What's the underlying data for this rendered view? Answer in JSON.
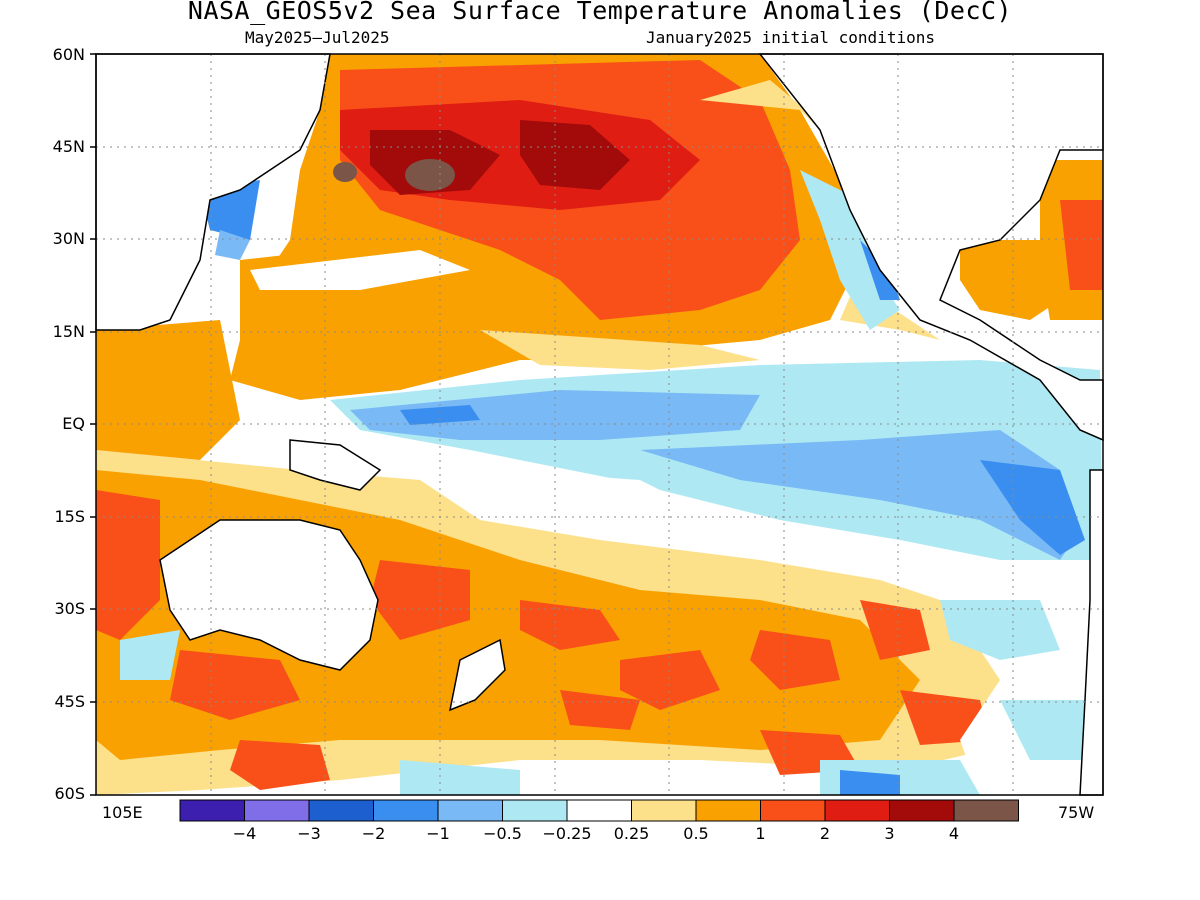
{
  "title": "NASA_GEOS5v2 Sea Surface Temperature Anomalies (DecC)",
  "subtitle_left": "May2025–Jul2025",
  "subtitle_right": "January2025 initial conditions",
  "lat_labels": [
    "60N",
    "45N",
    "30N",
    "15N",
    "EQ",
    "15S",
    "30S",
    "45S",
    "60S"
  ],
  "lon_left": "105E",
  "lon_right": "75W",
  "colorbar": {
    "colors": [
      "#3c1fae",
      "#7f6ee8",
      "#1e5fd0",
      "#3a8ef0",
      "#79b9f6",
      "#aee9f3",
      "#ffffff",
      "#fde08a",
      "#f9a100",
      "#f9501a",
      "#df1d12",
      "#a30b0b",
      "#7a5548"
    ],
    "labels": [
      "-4",
      "-3",
      "-2",
      "-1",
      "-0.5",
      "-0.25",
      "0.25",
      "0.5",
      "1",
      "2",
      "3",
      "4"
    ]
  }
}
